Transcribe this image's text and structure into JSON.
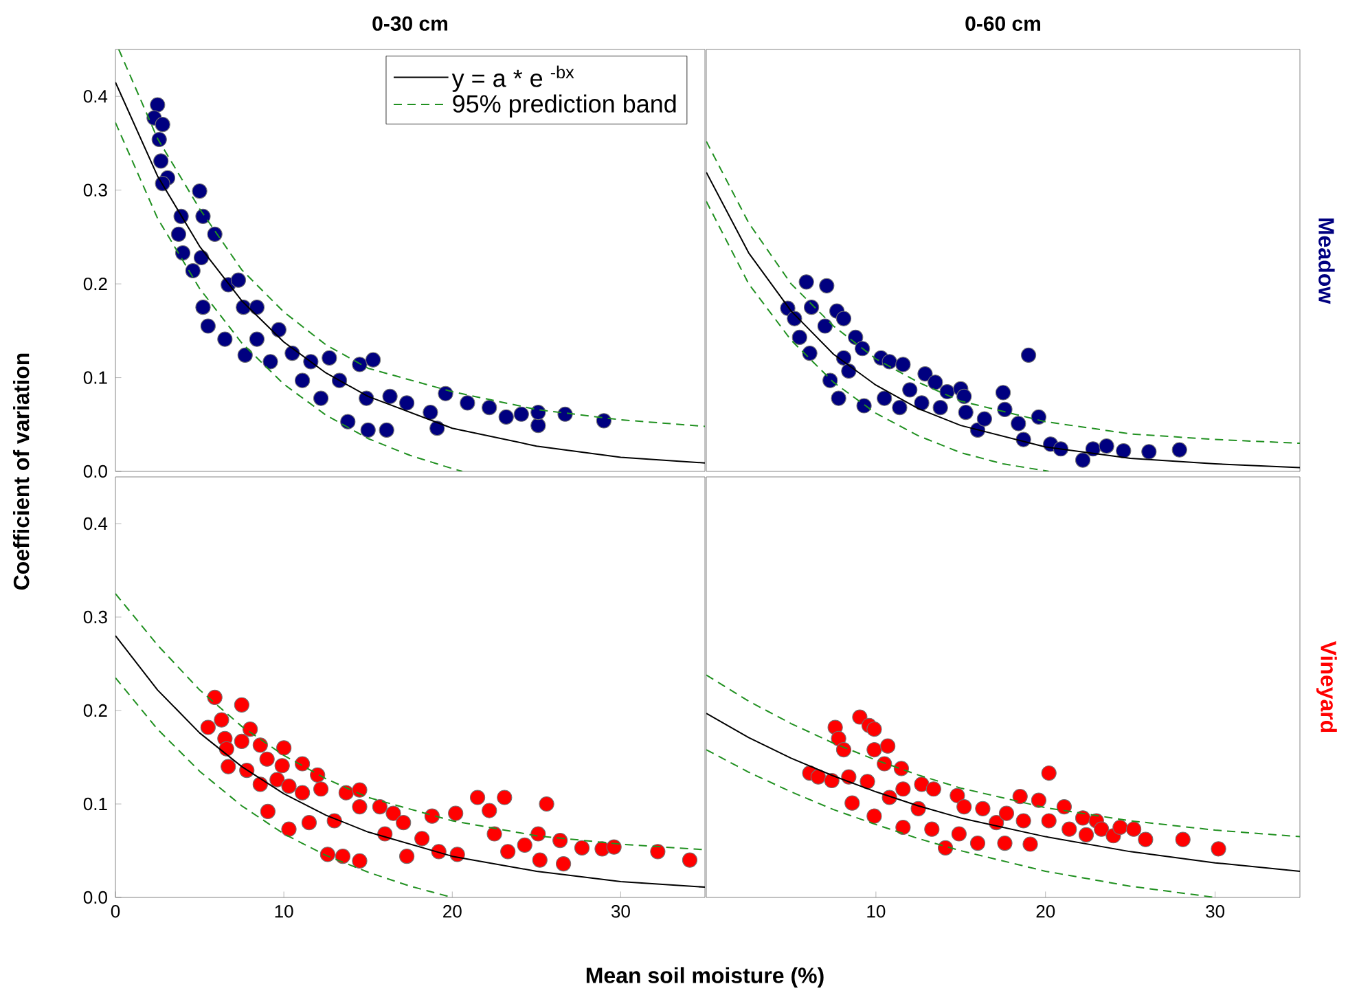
{
  "chart_data": [
    {
      "type": "scatter",
      "title": "0-30 cm",
      "ylabel": "Coefficient of variation",
      "xlim": [
        0,
        35
      ],
      "ylim": [
        0,
        0.45
      ],
      "yticks": [
        {
          "value": 0,
          "label": "0.0"
        },
        {
          "value": 0.1,
          "label": "0.1"
        },
        {
          "value": 0.2,
          "label": "0.2"
        },
        {
          "value": 0.3,
          "label": "0.3"
        },
        {
          "value": 0.4,
          "label": "0.4"
        }
      ],
      "tick_labels": "y",
      "legend": "top right",
      "series": [
        {
          "color": "#000080",
          "marker": "circle",
          "x": [
            2.5,
            2.3,
            2.8,
            2.6,
            2.7,
            3.1,
            2.8,
            3.9,
            3.75,
            4.0,
            5.0,
            5.2,
            5.65,
            5.9,
            5.1,
            4.6,
            5.2,
            5.5,
            6.5,
            6.7,
            7.3,
            7.6,
            7.7,
            8.4,
            8.4,
            9.2,
            9.7,
            10.5,
            11.1,
            11.6,
            12.2,
            12.7,
            13.3,
            13.8,
            14.5,
            15.0,
            15.3,
            14.9,
            16.1,
            16.3,
            17.3,
            18.7,
            19.1,
            19.6,
            20.9,
            22.2,
            23.2,
            24.1,
            25.1,
            25.1,
            26.7,
            29.0
          ],
          "values": [
            0.391,
            0.377,
            0.37,
            0.354,
            0.331,
            0.313,
            0.307,
            0.272,
            0.253,
            0.233,
            0.299,
            0.272,
            null,
            0.253,
            0.228,
            0.214,
            0.175,
            0.155,
            0.141,
            0.199,
            0.204,
            0.175,
            0.124,
            0.175,
            0.141,
            0.117,
            0.151,
            0.126,
            0.097,
            0.117,
            0.078,
            0.121,
            0.097,
            0.053,
            0.114,
            0.044,
            0.119,
            0.078,
            0.044,
            0.08,
            0.073,
            0.063,
            0.046,
            0.083,
            0.073,
            0.068,
            0.058,
            0.061,
            0.049,
            0.063,
            0.061,
            0.054
          ]
        },
        {
          "type": "line",
          "name": "y = a * e $^{-bx}$",
          "color": "#000000",
          "marker": "none",
          "line_style": "solid",
          "x": [
            0,
            2.5,
            5,
            7.5,
            10,
            12.5,
            15,
            20,
            25,
            30,
            35
          ],
          "values": [
            0.415,
            0.315,
            0.24,
            0.182,
            0.138,
            0.105,
            0.08,
            0.046,
            0.027,
            0.015,
            0.009
          ]
        },
        {
          "type": "line",
          "name": "95% prediction band",
          "color": "#209020",
          "marker": "none",
          "line_style": "dashed",
          "x": [
            0.2,
            2.5,
            5,
            7.5,
            10,
            12.5,
            15,
            20,
            25,
            30,
            35
          ],
          "values": [
            0.45,
            0.355,
            0.28,
            0.215,
            0.17,
            0.135,
            0.11,
            0.085,
            0.066,
            0.055,
            0.048
          ]
        },
        {
          "type": "line",
          "color": "#209020",
          "marker": "none",
          "line_style": "dashed",
          "x": [
            0,
            2.5,
            5,
            7.5,
            10,
            12.5,
            15,
            17.5,
            20,
            20.6
          ],
          "values": [
            0.372,
            0.27,
            0.195,
            0.137,
            0.093,
            0.06,
            0.035,
            0.017,
            0.003,
            0
          ]
        }
      ]
    },
    {
      "type": "scatter",
      "title": "0-60 cm",
      "annotations": [
        "Meadow"
      ],
      "xlim": [
        0,
        35
      ],
      "ylim": [
        0,
        0.45
      ],
      "tick_labels": false,
      "series": [
        {
          "color": "#000080",
          "marker": "circle",
          "x": [
            5.9,
            7.1,
            4.8,
            5.2,
            6.2,
            5.5,
            6.1,
            7.0,
            7.7,
            8.1,
            7.3,
            7.8,
            8.1,
            8.8,
            9.2,
            8.4,
            9.3,
            10.3,
            10.8,
            11.6,
            10.5,
            11.4,
            12.0,
            12.9,
            12.7,
            13.5,
            13.8,
            14.2,
            15.0,
            15.2,
            15.3,
            16.0,
            16.4,
            17.5,
            17.6,
            18.4,
            19.0,
            18.7,
            19.6,
            20.3,
            20.9,
            22.2,
            22.8,
            23.6,
            24.6,
            26.1,
            27.9
          ],
          "values": [
            0.202,
            0.198,
            0.174,
            0.163,
            0.175,
            0.143,
            0.126,
            0.155,
            0.171,
            0.163,
            0.097,
            0.078,
            0.121,
            0.143,
            0.131,
            0.107,
            0.07,
            0.121,
            0.117,
            0.114,
            0.078,
            0.068,
            0.087,
            0.104,
            0.073,
            0.095,
            0.068,
            0.085,
            0.088,
            0.08,
            0.063,
            0.044,
            0.056,
            0.084,
            0.066,
            0.051,
            0.124,
            0.034,
            0.058,
            0.029,
            0.024,
            0.012,
            0.024,
            0.027,
            0.022,
            0.021,
            0.023
          ]
        },
        {
          "type": "line",
          "color": "#000000",
          "marker": "none",
          "line_style": "solid",
          "x": [
            0,
            2.5,
            5,
            7.5,
            10,
            12.5,
            15,
            20,
            25,
            30,
            35
          ],
          "values": [
            0.319,
            0.233,
            0.171,
            0.125,
            0.092,
            0.067,
            0.049,
            0.026,
            0.014,
            0.008,
            0.004
          ]
        },
        {
          "type": "line",
          "color": "#209020",
          "marker": "none",
          "line_style": "dashed",
          "x": [
            0,
            2.5,
            5,
            7.5,
            10,
            12.5,
            15,
            20,
            25,
            30,
            35
          ],
          "values": [
            0.352,
            0.265,
            0.2,
            0.155,
            0.12,
            0.095,
            0.075,
            0.053,
            0.04,
            0.034,
            0.03
          ]
        },
        {
          "type": "line",
          "color": "#209020",
          "marker": "none",
          "line_style": "dashed",
          "x": [
            0,
            2.5,
            5,
            7.5,
            10,
            12.5,
            15,
            17.5,
            20.2
          ],
          "values": [
            0.288,
            0.2,
            0.14,
            0.095,
            0.062,
            0.038,
            0.02,
            0.008,
            0
          ]
        }
      ]
    },
    {
      "type": "scatter",
      "xlabel": "Mean soil moisture (%)",
      "xlim": [
        0,
        35
      ],
      "ylim": [
        0,
        0.45
      ],
      "xticks": [
        0,
        10,
        20,
        30
      ],
      "yticks": [
        {
          "value": 0,
          "label": "0.0"
        },
        {
          "value": 0.1,
          "label": "0.1"
        },
        {
          "value": 0.2,
          "label": "0.2"
        },
        {
          "value": 0.3,
          "label": "0.3"
        },
        {
          "value": 0.4,
          "label": "0.4"
        }
      ],
      "series": [
        {
          "color": "#ff0000",
          "marker": "circle",
          "x": [
            5.9,
            7.5,
            5.5,
            6.3,
            6.5,
            6.6,
            6.7,
            7.5,
            8.0,
            7.8,
            8.6,
            9.0,
            10.0,
            9.9,
            8.6,
            9.05,
            9.6,
            10.3,
            10.3,
            11.1,
            11.1,
            12.0,
            11.5,
            12.2,
            12.6,
            13.0,
            13.7,
            14.5,
            14.5,
            13.5,
            14.5,
            15.7,
            16.0,
            16.5,
            17.1,
            17.3,
            18.2,
            18.8,
            19.2,
            20.2,
            20.3,
            21.2,
            21.5,
            22.2,
            23.1,
            22.5,
            23.3,
            24.3,
            25.1,
            25.6,
            25.2,
            26.4,
            26.6,
            27.7,
            28.9,
            29.6,
            32.2,
            34.1
          ],
          "values": [
            0.214,
            0.206,
            0.182,
            0.19,
            0.17,
            0.159,
            0.14,
            0.167,
            0.18,
            0.136,
            0.163,
            0.148,
            0.16,
            0.141,
            0.121,
            0.092,
            0.126,
            0.119,
            0.073,
            0.143,
            0.112,
            0.131,
            0.08,
            0.116,
            0.046,
            0.082,
            0.112,
            0.115,
            0.097,
            0.044,
            0.039,
            0.097,
            0.068,
            0.09,
            0.08,
            0.044,
            0.063,
            0.087,
            0.049,
            0.09,
            0.046,
            null,
            0.107,
            0.093,
            0.107,
            0.068,
            0.049,
            0.056,
            0.068,
            0.1,
            0.04,
            0.061,
            0.036,
            0.053,
            0.052,
            0.054,
            0.049,
            0.04
          ]
        },
        {
          "type": "line",
          "color": "#000000",
          "marker": "none",
          "line_style": "solid",
          "x": [
            0,
            2.5,
            5,
            7.5,
            10,
            12.5,
            15,
            20,
            25,
            30,
            35
          ],
          "values": [
            0.28,
            0.222,
            0.176,
            0.14,
            0.111,
            0.088,
            0.07,
            0.044,
            0.028,
            0.017,
            0.011
          ]
        },
        {
          "type": "line",
          "color": "#209020",
          "marker": "none",
          "line_style": "dashed",
          "x": [
            0,
            2.5,
            5,
            7.5,
            10,
            12.5,
            15,
            20,
            25,
            30,
            35
          ],
          "values": [
            0.325,
            0.27,
            0.222,
            0.183,
            0.152,
            0.127,
            0.107,
            0.082,
            0.066,
            0.057,
            0.051
          ]
        },
        {
          "type": "line",
          "color": "#209020",
          "marker": "none",
          "line_style": "dashed",
          "x": [
            0,
            2.5,
            5,
            7.5,
            10,
            12.5,
            15,
            17.5,
            20
          ],
          "values": [
            0.235,
            0.18,
            0.135,
            0.098,
            0.068,
            0.045,
            0.027,
            0.012,
            0
          ]
        }
      ]
    },
    {
      "type": "scatter",
      "annotations": [
        "Vineyard"
      ],
      "xlim": [
        0,
        35
      ],
      "ylim": [
        0,
        0.45
      ],
      "xticks": [
        10,
        20,
        30
      ],
      "tick_labels": "x",
      "series": [
        {
          "color": "#ff0000",
          "marker": "circle",
          "x": [
            6.1,
            6.6,
            7.4,
            7.6,
            7.8,
            8.1,
            9.05,
            9.6,
            9.9,
            9.9,
            10.7,
            10.5,
            11.5,
            8.4,
            9.5,
            8.6,
            9.9,
            10.8,
            11.6,
            12.7,
            13.4,
            12.5,
            11.6,
            13.3,
            14.1,
            14.8,
            15.2,
            14.9,
            16.0,
            16.3,
            17.1,
            17.7,
            17.6,
            18.5,
            18.7,
            19.1,
            19.6,
            20.2,
            20.2,
            21.1,
            21.4,
            22.2,
            22.4,
            23.0,
            23.3,
            24.0,
            24.4,
            25.2,
            25.9,
            28.1,
            30.2
          ],
          "values": [
            0.133,
            0.129,
            0.125,
            0.182,
            0.17,
            0.158,
            0.193,
            0.184,
            0.18,
            0.158,
            0.162,
            0.143,
            0.138,
            0.129,
            0.124,
            0.101,
            0.087,
            0.107,
            0.116,
            0.121,
            0.116,
            0.095,
            0.075,
            0.073,
            0.053,
            0.109,
            0.097,
            0.068,
            0.058,
            0.095,
            0.08,
            0.09,
            0.058,
            0.108,
            0.082,
            0.057,
            0.104,
            0.133,
            0.082,
            0.097,
            0.073,
            0.085,
            0.067,
            0.082,
            0.073,
            0.066,
            0.075,
            0.073,
            0.062,
            0.062,
            0.052
          ]
        },
        {
          "type": "line",
          "color": "#000000",
          "marker": "none",
          "line_style": "solid",
          "x": [
            0,
            2.5,
            5,
            7.5,
            10,
            12.5,
            15,
            20,
            25,
            30,
            35
          ],
          "values": [
            0.197,
            0.171,
            0.149,
            0.13,
            0.113,
            0.098,
            0.085,
            0.065,
            0.049,
            0.037,
            0.028
          ]
        },
        {
          "type": "line",
          "color": "#209020",
          "marker": "none",
          "line_style": "dashed",
          "x": [
            0,
            2.5,
            5,
            7.5,
            10,
            12.5,
            15,
            20,
            25,
            30,
            35
          ],
          "values": [
            0.238,
            0.21,
            0.186,
            0.165,
            0.147,
            0.131,
            0.117,
            0.096,
            0.082,
            0.072,
            0.065
          ]
        },
        {
          "type": "line",
          "color": "#209020",
          "marker": "none",
          "line_style": "dashed",
          "x": [
            0,
            2.5,
            5,
            7.5,
            10,
            12.5,
            15,
            20,
            25,
            30
          ],
          "values": [
            0.158,
            0.134,
            0.113,
            0.094,
            0.078,
            0.063,
            0.05,
            0.028,
            0.012,
            0
          ]
        }
      ]
    }
  ]
}
